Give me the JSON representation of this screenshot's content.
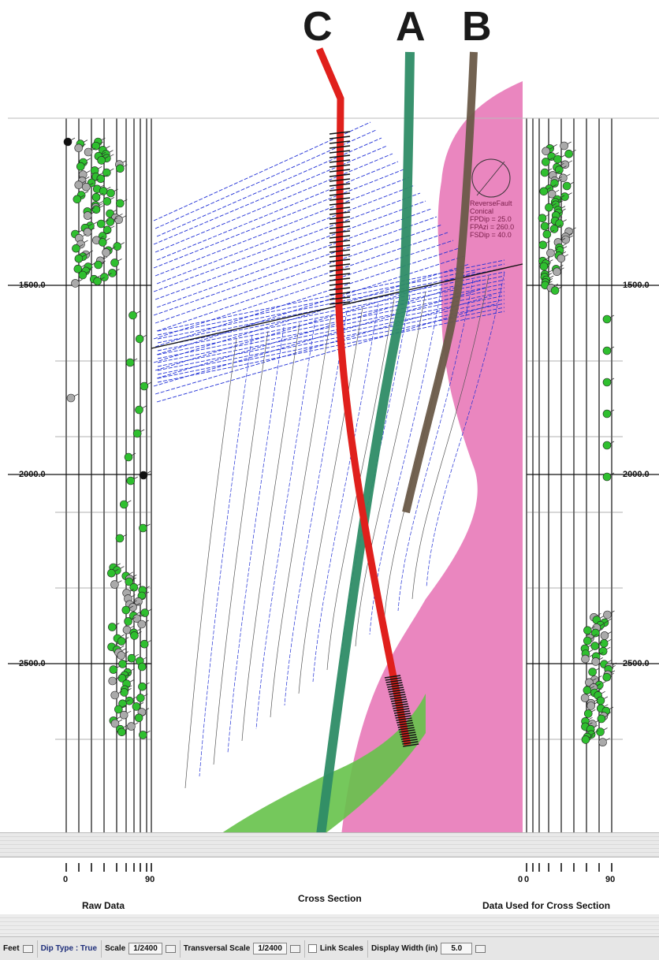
{
  "wells": [
    {
      "letter": "C",
      "color": "#e0201c"
    },
    {
      "letter": "A",
      "color": "#2e8c66"
    },
    {
      "letter": "B",
      "color": "#6a5a48"
    }
  ],
  "depth_labels_left": [
    "1500.0",
    "2000.0",
    "2500.0"
  ],
  "depth_labels_right": [
    "1500.0",
    "2000.0",
    "2500.0"
  ],
  "axis_left": {
    "min": "0",
    "max": "90"
  },
  "axis_right": {
    "min": "0",
    "max": "90"
  },
  "cross_section_zero": "0",
  "captions": {
    "raw_data": "Raw Data",
    "cross_section": "Cross Section",
    "data_used": "Data Used for Cross Section"
  },
  "fault_annotation": {
    "line1": "ReverseFault",
    "line2": "Conical",
    "line3": "FPDip = 25.0",
    "line4": "FPAzi = 260.0",
    "line5": "FSDip = 40.0"
  },
  "colors": {
    "pink_zone": "#e879b8",
    "green_zone": "#66c24a",
    "dip_blue": "#1f2fd6",
    "tadpole_green": "#2fbf2f"
  },
  "toolbar": {
    "units": "Feet",
    "dip_type": "Dip Type : True",
    "scale_label": "Scale",
    "scale_value": "1/2400",
    "transversal_label": "Transversal Scale",
    "transversal_value": "1/2400",
    "link_scales": "Link Scales",
    "display_width_label": "Display Width (in)",
    "display_width_value": "5.0"
  }
}
